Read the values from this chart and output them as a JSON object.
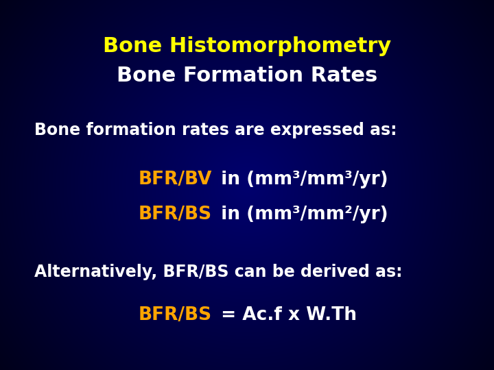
{
  "title_line1": "Bone Histomorphometry",
  "title_line2": "Bone Formation Rates",
  "title_color": "#FFFF00",
  "white_color": "#FFFFFF",
  "orange_color": "#FFA500",
  "line1_text": "Bone formation rates are expressed as:",
  "line2_orange": "BFR/BV",
  "line2_white": " in (mm³/mm³/yr)",
  "line3_orange": "BFR/BS",
  "line3_white": " in (mm³/mm²/yr)",
  "line4_text": "Alternatively, BFR/BS can be derived as:",
  "line5_orange": "BFR/BS",
  "line5_white": " = Ac.f x W.Th",
  "fontsize_title": 22,
  "fontsize_body": 17,
  "fontsize_formula": 19,
  "bg_dark": "#00001E",
  "bg_mid": "#00007A"
}
